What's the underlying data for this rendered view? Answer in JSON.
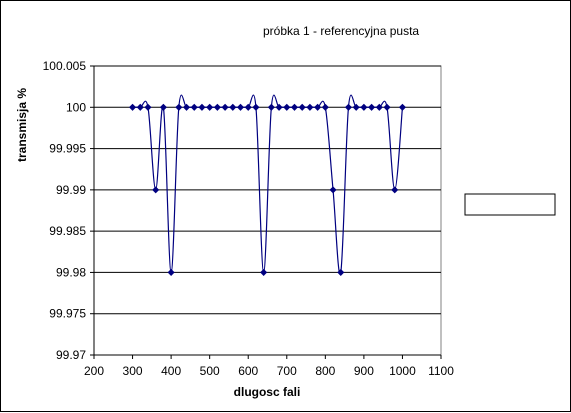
{
  "chart_data": {
    "type": "line",
    "title": "próbka 1 - referencyjna pusta",
    "xlabel": "dlugosc fali",
    "ylabel": "transmisja %",
    "xlim": [
      200,
      1100
    ],
    "ylim": [
      99.97,
      100.005
    ],
    "x_ticks": [
      "200",
      "300",
      "400",
      "500",
      "600",
      "700",
      "800",
      "900",
      "1000",
      "1100"
    ],
    "y_ticks": [
      "100.005",
      "100",
      "99.995",
      "99.99",
      "99.985",
      "99.98",
      "99.975",
      "99.97"
    ],
    "grid": true,
    "legend": "right",
    "series": [
      {
        "x": [
          300,
          320,
          340,
          360,
          380,
          400,
          420,
          440,
          460,
          480,
          500,
          520,
          540,
          560,
          580,
          600,
          620,
          640,
          660,
          680,
          700,
          720,
          740,
          760,
          780,
          800,
          820,
          840,
          860,
          880,
          900,
          920,
          940,
          960,
          980,
          1000
        ],
        "y": [
          100,
          100,
          100,
          99.99,
          100,
          99.98,
          100,
          100,
          100,
          100,
          100,
          100,
          100,
          100,
          100,
          100,
          100,
          99.98,
          100,
          100,
          100,
          100,
          100,
          100,
          100,
          100,
          99.99,
          99.98,
          100,
          100,
          100,
          100,
          100,
          100,
          99.99,
          100
        ]
      }
    ],
    "colors": {
      "line": "#000080",
      "marker": "#000080",
      "grid": "#000000"
    }
  }
}
